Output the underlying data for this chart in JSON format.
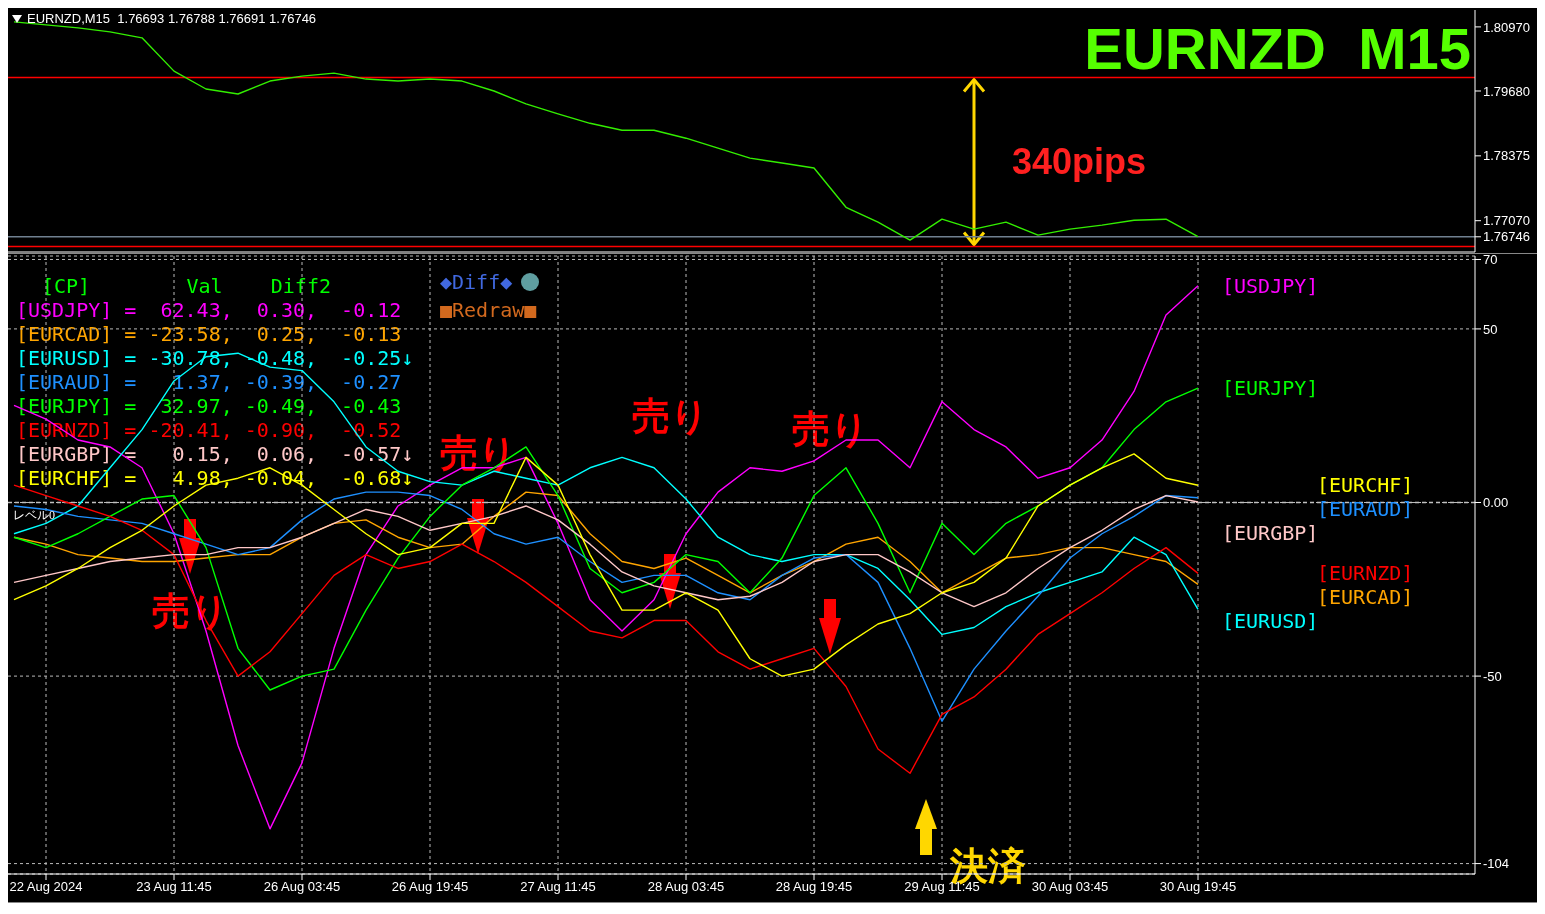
{
  "chart_data": [
    {
      "type": "line",
      "title": "EURNZD  M15",
      "subtitle": "EURNZD,M15  1.76693 1.76788 1.76691 1.76746",
      "categories": [
        null,
        null,
        null,
        null,
        null,
        null,
        null,
        null,
        null,
        null,
        null,
        null,
        null,
        null,
        null,
        null,
        null,
        null,
        null,
        null,
        null,
        null,
        null,
        null,
        null,
        null,
        null,
        null,
        null,
        null,
        null,
        null,
        null,
        null,
        null,
        null,
        null,
        null
      ],
      "series": [
        {
          "color": "#33ee00",
          "values": [
            1.8107,
            1.8101,
            1.8095,
            1.8087,
            1.8075,
            1.8008,
            1.7972,
            1.7962,
            1.7988,
            1.7998,
            1.8004,
            1.7992,
            1.7988,
            1.7992,
            1.7988,
            1.7968,
            1.7942,
            1.7922,
            1.7903,
            1.7889,
            1.7889,
            1.7873,
            1.7853,
            1.7833,
            1.7823,
            1.7813,
            1.7734,
            1.7704,
            1.7668,
            1.771,
            1.769,
            1.7704,
            1.7678,
            1.769,
            1.7698,
            1.7708,
            1.771,
            1.7675
          ]
        }
      ],
      "ylim": [
        1.7644,
        1.8131
      ],
      "yticks": [
        {
          "value": 1.8097,
          "label": "1.80970"
        },
        {
          "value": 1.7968,
          "label": "1.79680"
        },
        {
          "value": 1.78375,
          "label": "1.78375"
        },
        {
          "value": 1.7707,
          "label": "1.77070"
        },
        {
          "value": 1.76746,
          "label": "1.76746"
        }
      ],
      "tick_labels": "y",
      "ref_lines": [
        {
          "axis": "y",
          "value": 1.7995,
          "color": "#ff0000"
        },
        {
          "axis": "y",
          "value": 1.7655,
          "color": "#ff0000"
        },
        {
          "axis": "y",
          "value": 1.76746,
          "color": "#708090"
        }
      ],
      "annotations": [
        "340pips"
      ]
    },
    {
      "type": "line",
      "categories": [
        null,
        "22 Aug 2024",
        null,
        null,
        null,
        "23 Aug 11:45",
        null,
        null,
        null,
        "26 Aug 03:45",
        null,
        null,
        null,
        "26 Aug 19:45",
        null,
        null,
        null,
        "27 Aug 11:45",
        null,
        null,
        null,
        "28 Aug 03:45",
        null,
        null,
        null,
        "28 Aug 19:45",
        null,
        null,
        null,
        "29 Aug 11:45",
        null,
        null,
        null,
        "30 Aug 03:45",
        null,
        null,
        null,
        "30 Aug 19:45"
      ],
      "series": [
        {
          "name": "[USDJPY]",
          "color": "#ff00ff",
          "values": [
            28,
            24,
            18,
            16,
            10,
            -9,
            -37,
            -70,
            -94,
            -75,
            -42,
            -15,
            -1,
            5,
            10,
            10,
            13,
            -6,
            -28,
            -37,
            -28,
            -9,
            3,
            10,
            9,
            12,
            18,
            18,
            10,
            29,
            21,
            16,
            7,
            10,
            18,
            32,
            54,
            62.43
          ]
        },
        {
          "name": "[EURCAD]",
          "color": "#ffa500",
          "values": [
            -10,
            -12,
            -15,
            -16,
            -17,
            -17,
            -16,
            -15,
            -15,
            -10,
            -6,
            -5,
            -10,
            -13,
            -12,
            -4,
            3,
            2,
            -9,
            -17,
            -19,
            -16,
            -21,
            -26,
            -21,
            -17,
            -12,
            -10,
            -17,
            -26,
            -21,
            -16,
            -15,
            -13,
            -13,
            -15,
            -17,
            -23.58
          ]
        },
        {
          "name": "[EURUSD]",
          "color": "#00ffff",
          "values": [
            -9,
            -6,
            -1,
            10,
            21,
            35,
            42,
            43,
            39,
            38,
            29,
            16,
            9,
            6,
            5,
            9,
            7,
            5,
            10,
            13,
            10,
            1,
            -10,
            -15,
            -17,
            -15,
            -15,
            -19,
            -28,
            -38,
            -36,
            -30,
            -26,
            -23,
            -20,
            -10,
            -15,
            -30.78
          ]
        },
        {
          "name": "[EURAUD]",
          "color": "#1e90ff",
          "values": [
            -1,
            -2,
            -4,
            -5,
            -6,
            -9,
            -12,
            -15,
            -13,
            -5,
            1,
            3,
            3,
            2,
            -2,
            -9,
            -12,
            -10,
            -17,
            -23,
            -21,
            -21,
            -26,
            -28,
            -21,
            -16,
            -15,
            -23,
            -42,
            -63,
            -48,
            -37,
            -27,
            -16,
            -9,
            -4,
            2,
            1.37
          ]
        },
        {
          "name": "[EURJPY]",
          "color": "#00ff00",
          "values": [
            -10,
            -13,
            -9,
            -4,
            1,
            2,
            -13,
            -42,
            -54,
            -50,
            -48,
            -31,
            -16,
            -4,
            5,
            10,
            16,
            2,
            -19,
            -26,
            -23,
            -15,
            -17,
            -26,
            -16,
            2,
            10,
            -6,
            -26,
            -6,
            -15,
            -6,
            -1,
            5,
            10,
            21,
            29,
            32.97
          ]
        },
        {
          "name": "[EURNZD]",
          "color": "#ff0000",
          "values": [
            5,
            2,
            -1,
            -4,
            -8,
            -15,
            -34,
            -50,
            -43,
            -32,
            -21,
            -15,
            -19,
            -17,
            -12,
            -17,
            -23,
            -30,
            -37,
            -39,
            -34,
            -34,
            -43,
            -48,
            -45,
            -42,
            -53,
            -71,
            -78,
            -61,
            -56,
            -48,
            -38,
            -32,
            -26,
            -19,
            -13,
            -20.41
          ]
        },
        {
          "name": "[EURGBP]",
          "color": "#ffc8c8",
          "values": [
            -23,
            -21,
            -19,
            -17,
            -16,
            -15,
            -15,
            -13,
            -13,
            -10,
            -6,
            -2,
            -4,
            -8,
            -6,
            -4,
            -1,
            -5,
            -12,
            -20,
            -24,
            -26,
            -28,
            -27,
            -23,
            -17,
            -15,
            -15,
            -20,
            -26,
            -30,
            -26,
            -19,
            -13,
            -8,
            -2,
            2,
            0.15
          ]
        },
        {
          "name": "[EURCHF]",
          "color": "#ffff00",
          "values": [
            -28,
            -24,
            -19,
            -13,
            -8,
            -1,
            5,
            7,
            10,
            5,
            -2,
            -9,
            -15,
            -13,
            -6,
            -6,
            13,
            5,
            -15,
            -31,
            -31,
            -26,
            -31,
            -45,
            -50,
            -48,
            -41,
            -35,
            -32,
            -26,
            -23,
            -16,
            -1,
            5,
            10,
            14,
            7,
            4.98
          ]
        }
      ],
      "ylim": [
        -107,
        71
      ],
      "yticks": [
        70,
        50,
        {
          "value": 0,
          "label": "0.00"
        },
        -50,
        -104
      ],
      "grid": true,
      "ref_lines": [
        {
          "axis": "y",
          "value": 0,
          "label": "レベル0",
          "color": "#c0c0c0",
          "line_style": "dashed"
        }
      ],
      "annotations": [
        "[CP]        Val    Diff2",
        "[USDJPY] =  62.43,  0.30,  -0.12",
        "[EURCAD] = -23.58,  0.25,  -0.13",
        "[EURUSD] = -30.78, -0.48,  -0.25↓",
        "[EURAUD] =   1.37, -0.39,  -0.27",
        "[EURJPY] =  32.97, -0.49,  -0.43",
        "[EURNZD] = -20.41, -0.90,  -0.52",
        "[EURGBP] =   0.15,  0.06,  -0.57↓",
        "[EURCHF] =   4.98, -0.04,  -0.68↓",
        "◆Diff◆",
        "■Redraw■",
        "売り",
        "売り",
        "売り",
        "売り",
        "決済"
      ]
    }
  ]
}
